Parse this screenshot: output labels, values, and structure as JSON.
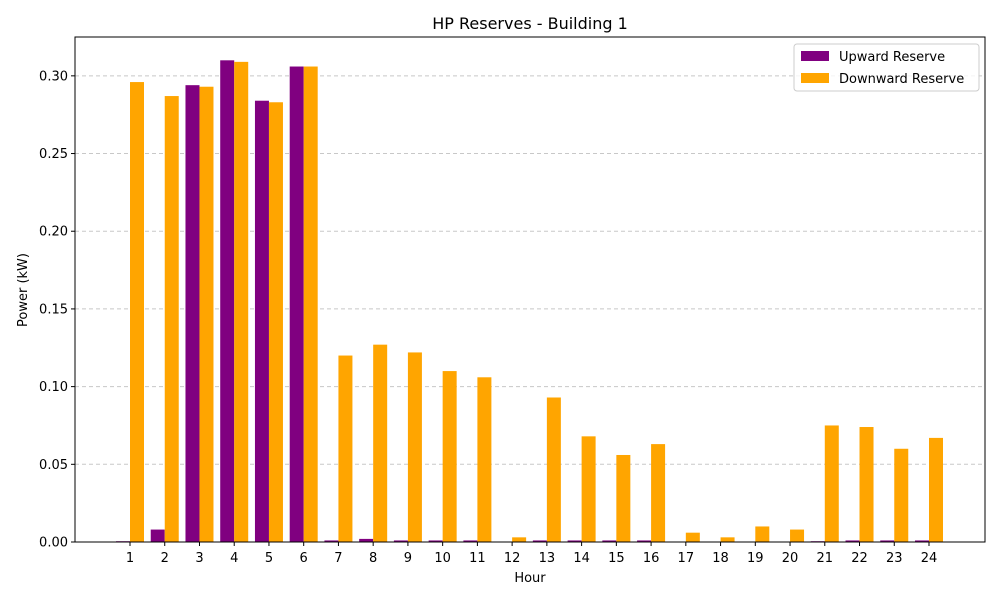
{
  "chart_data": {
    "type": "bar",
    "title": "HP Reserves - Building 1",
    "xlabel": "Hour",
    "ylabel": "Power (kW)",
    "categories": [
      "1",
      "2",
      "3",
      "4",
      "5",
      "6",
      "7",
      "8",
      "9",
      "10",
      "11",
      "12",
      "13",
      "14",
      "15",
      "16",
      "17",
      "18",
      "19",
      "20",
      "21",
      "22",
      "23",
      "24"
    ],
    "series": [
      {
        "name": "Upward Reserve",
        "color": "#800080",
        "values": [
          0.0005,
          0.008,
          0.294,
          0.31,
          0.284,
          0.306,
          0.001,
          0.002,
          0.001,
          0.001,
          0.001,
          0.0,
          0.001,
          0.001,
          0.001,
          0.001,
          0.0,
          0.0,
          0.0,
          0.0,
          0.0005,
          0.001,
          0.001,
          0.001
        ]
      },
      {
        "name": "Downward Reserve",
        "color": "#FFA500",
        "values": [
          0.296,
          0.287,
          0.293,
          0.309,
          0.283,
          0.306,
          0.12,
          0.127,
          0.122,
          0.11,
          0.106,
          0.003,
          0.093,
          0.068,
          0.056,
          0.063,
          0.006,
          0.003,
          0.01,
          0.008,
          0.075,
          0.074,
          0.06,
          0.067
        ]
      }
    ],
    "yticks": [
      "0.00",
      "0.05",
      "0.10",
      "0.15",
      "0.20",
      "0.25",
      "0.30"
    ],
    "ylim": [
      0,
      0.325
    ],
    "grid": "y-dashed",
    "legend_position": "top-right"
  }
}
